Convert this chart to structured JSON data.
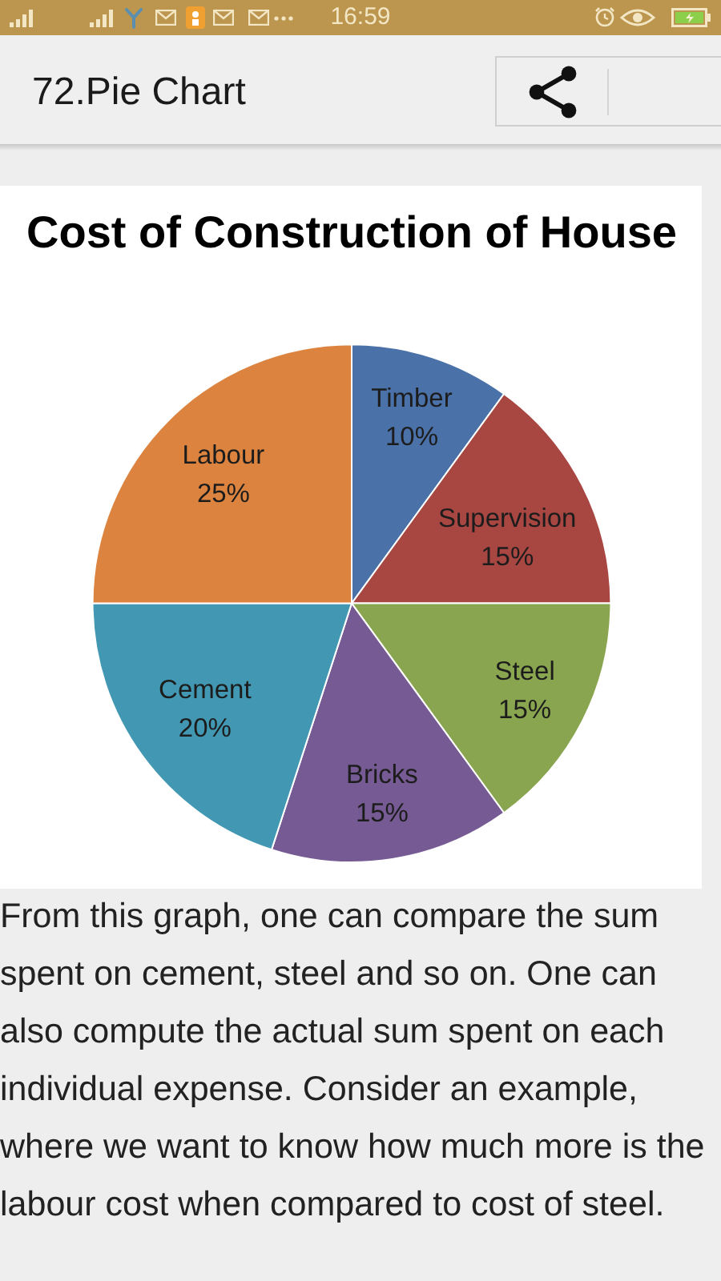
{
  "chart_data": {
    "type": "pie",
    "title": "Cost of Construction of House",
    "categories": [
      "Timber",
      "Supervision",
      "Steel",
      "Bricks",
      "Cement",
      "Labour"
    ],
    "values": [
      10,
      15,
      15,
      15,
      20,
      25
    ],
    "colors": [
      "#4a71a8",
      "#a84642",
      "#8aa54f",
      "#765a93",
      "#4298b2",
      "#dc843f"
    ],
    "value_labels": [
      "10%",
      "15%",
      "15%",
      "15%",
      "20%",
      "25%"
    ],
    "annotations": [
      "16:59",
      "72.Pie Chart",
      "From this graph, one can compare the sum spent on cement, steel and so on. One can also compute the actual sum spent on each individual expense. Consider an example, where we want to know how much more is the labour cost when compared to cost of steel."
    ]
  }
}
